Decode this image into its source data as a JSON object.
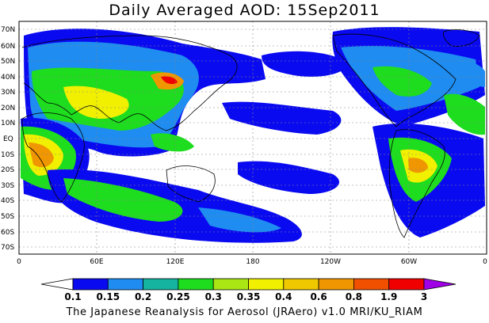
{
  "title": "Daily Averaged AOD: 15Sep2011",
  "footer": "The Japanese Reanalysis for Aerosol (JRAero) v1.0 MRI/KU_RIAM",
  "lat_labels": [
    "70N",
    "60N",
    "50N",
    "40N",
    "30N",
    "20N",
    "10N",
    "EQ",
    "10S",
    "20S",
    "30S",
    "40S",
    "50S",
    "60S",
    "70S"
  ],
  "lon_labels": [
    "0",
    "60E",
    "120E",
    "180",
    "120W",
    "60W",
    "0"
  ],
  "colorbar": {
    "levels": [
      "0.1",
      "0.15",
      "0.2",
      "0.25",
      "0.3",
      "0.35",
      "0.4",
      "0.6",
      "0.8",
      "1.9",
      "3"
    ],
    "colors": [
      "#ffffff",
      "#0a0af0",
      "#1e8cf0",
      "#14b4a0",
      "#1edc1e",
      "#aae614",
      "#f0f000",
      "#f0c800",
      "#f09600",
      "#f05000",
      "#f00000",
      "#a000e6"
    ]
  },
  "shading_colors": [
    "#0a0af0",
    "#1e8cf0",
    "#14b4a0",
    "#1edc1e",
    "#f0f000",
    "#f0c800",
    "#f09600",
    "#f00000"
  ]
}
